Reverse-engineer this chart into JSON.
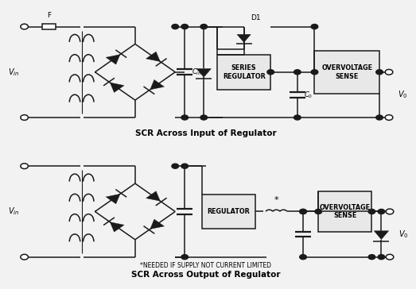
{
  "bg_color": "#f2f2f2",
  "line_color": "#1a1a1a",
  "title1": "SCR Across Input of Regulator",
  "title2": "SCR Across Output of Regulator",
  "footnote": "*NEEDED IF SUPPLY NOT CURRENT LIMITED",
  "label_Vin": "$V_{in}$",
  "label_V0": "$V_0$",
  "label_F": "F",
  "label_D1": "D1",
  "label_Cin": "$C_{in}$",
  "label_C0": "$C_0$",
  "label_series_reg": "SERIES\nREGULATOR",
  "label_overvoltage1": "OVERVOLTAGE\nSENSE",
  "label_regulator": "REGULATOR",
  "label_overvoltage2": "OVERVOLTAGE\nSENSE",
  "label_star": "*"
}
